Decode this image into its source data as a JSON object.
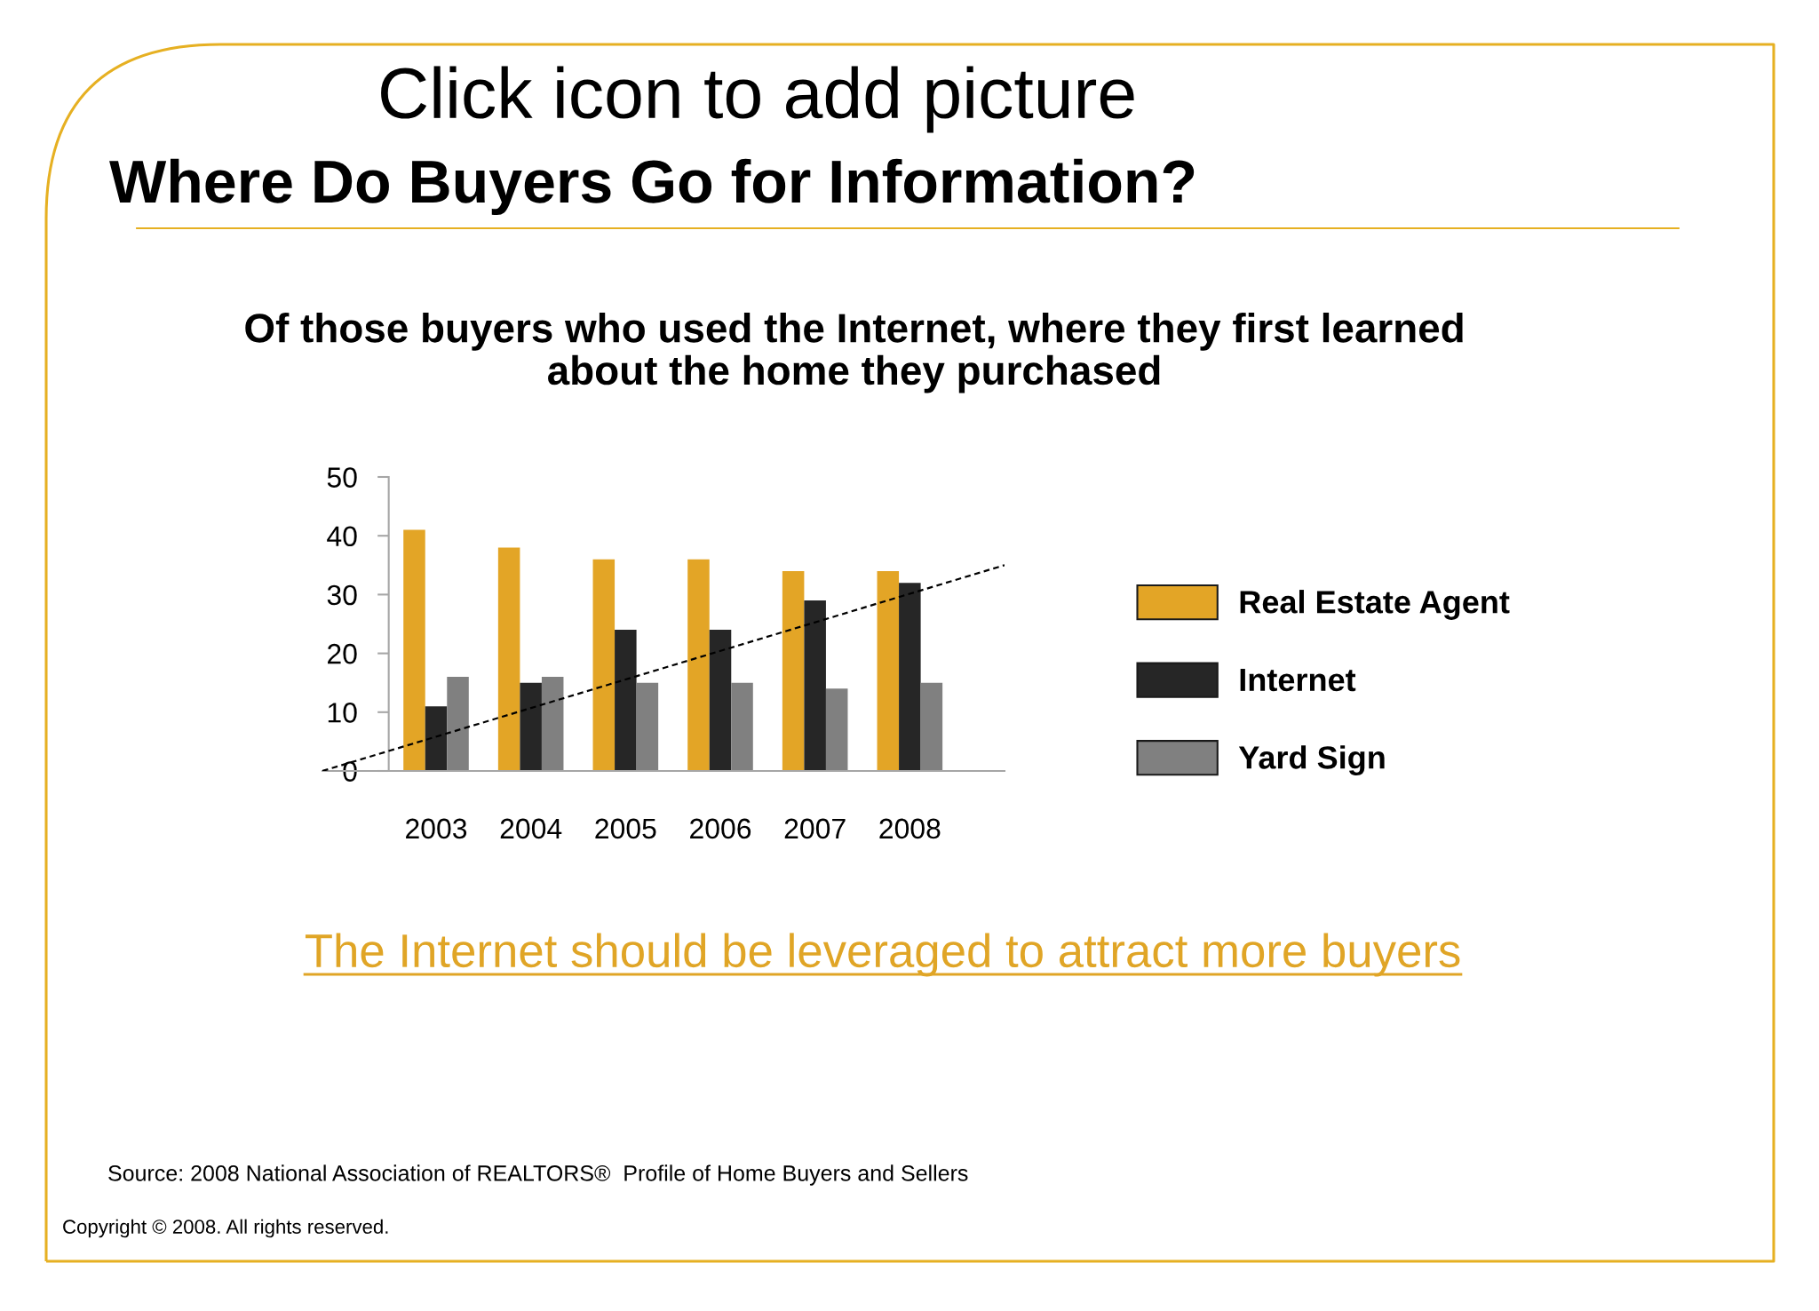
{
  "chart_data": {
    "type": "bar",
    "title": "Where Do Buyers Go for Information?",
    "subtitle": "Of those buyers who used the Internet, where they first learned\nabout the home they purchased",
    "x": [
      2003,
      2004,
      2005,
      2006,
      2007,
      2008
    ],
    "series": [
      {
        "name": "Real Estate Agent",
        "color": "#e3a526",
        "values": [
          41,
          38,
          36,
          36,
          34,
          34
        ]
      },
      {
        "name": "Internet",
        "color": "#262626",
        "values": [
          11,
          15,
          24,
          24,
          29,
          32
        ]
      },
      {
        "name": "Yard Sign",
        "color": "#808080",
        "values": [
          16,
          16,
          15,
          15,
          14,
          15
        ]
      },
      {
        "type": "line",
        "x": [
          2001.8,
          2009.0
        ],
        "values": [
          0,
          35
        ],
        "color": "#000000",
        "line_style": "dashed"
      }
    ],
    "xlim": [
      2001.8,
      2009.0
    ],
    "xticks": [
      2003,
      2004,
      2005,
      2006,
      2007,
      2008
    ],
    "ylim": [
      0,
      50
    ],
    "yticks": [
      0,
      10,
      20,
      30,
      40,
      50
    ],
    "legend": "right",
    "annotations": [
      "Click icon to add picture",
      "The Internet should be leveraged to attract more buyers",
      "Source: 2008 National Association of REALTORS®  Profile of Home Buyers and Sellers",
      "Copyright © 2008. All rights reserved."
    ]
  }
}
